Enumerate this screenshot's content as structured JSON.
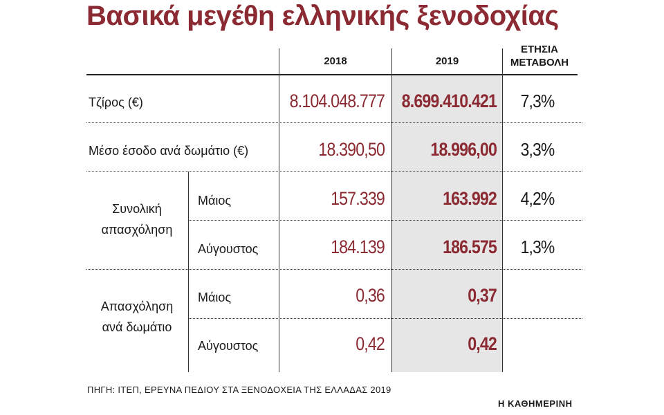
{
  "title": "Βασικά μεγέθη ελληνικής ξενοδοχίας",
  "columns": {
    "y2018": "2018",
    "y2019": "2019",
    "change_line1": "ΕΤΗΣΙΑ",
    "change_line2": "ΜΕΤΑΒΟΛΗ"
  },
  "rows": {
    "turnover": {
      "label": "Τζίρος (€)",
      "v2018": "8.104.048.777",
      "v2019": "8.699.410.421",
      "change": "7,3%"
    },
    "avg_income": {
      "label": "Μέσο έσοδο ανά δωμάτιο (€)",
      "v2018": "18.390,50",
      "v2019": "18.996,00",
      "change": "3,3%"
    },
    "employment": {
      "label_line1": "Συνολική",
      "label_line2": "απασχόληση",
      "may": {
        "label": "Μάιος",
        "v2018": "157.339",
        "v2019": "163.992",
        "change": "4,2%"
      },
      "august": {
        "label": "Αύγουστος",
        "v2018": "184.139",
        "v2019": "186.575",
        "change": "1,3%"
      }
    },
    "employment_per_room": {
      "label_line1": "Απασχόληση",
      "label_line2": "ανά δωμάτιο",
      "may": {
        "label": "Μάιος",
        "v2018": "0,36",
        "v2019": "0,37"
      },
      "august": {
        "label": "Αύγουστος",
        "v2018": "0,42",
        "v2019": "0,42"
      }
    }
  },
  "source": "ΠΗΓΗ: ΙΤΕΠ, ΕΡΕΥΝΑ ΠΕΔΙΟΥ ΣΤΑ ΞΕΝΟΔΟΧΕΙΑ ΤΗΣ ΕΛΛΑΔΑΣ 2019",
  "brand": "Η ΚΑΘΗΜΕΡΙΝΗ",
  "colors": {
    "accent": "#8b2a32",
    "highlight": "#e6e6e6",
    "text": "#1a1a1a"
  }
}
